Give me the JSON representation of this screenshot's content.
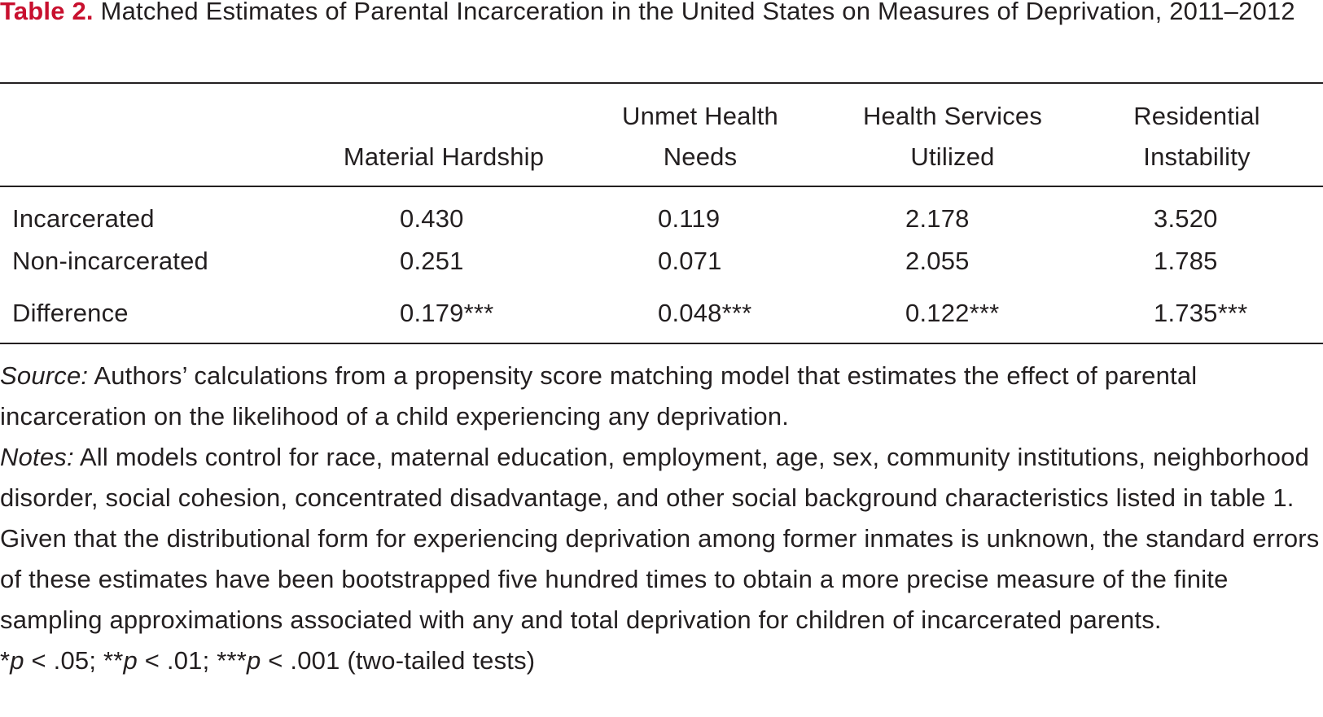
{
  "caption": {
    "label": "Table 2.",
    "title": " Matched Estimates of Parental Incarceration in the United States on Measures of Deprivation, 2011–2012"
  },
  "table": {
    "columns": [
      {
        "line1": "",
        "line2": "Material Hardship"
      },
      {
        "line1": "Unmet Health",
        "line2": "Needs"
      },
      {
        "line1": "Health Services",
        "line2": "Utilized"
      },
      {
        "line1": "Residential",
        "line2": "Instability"
      }
    ],
    "rows": [
      {
        "label": "Incarcerated",
        "values": [
          "0.430",
          "0.119",
          "2.178",
          "3.520"
        ]
      },
      {
        "label": "Non-incarcerated",
        "values": [
          "0.251",
          "0.071",
          "2.055",
          "1.785"
        ]
      },
      {
        "label": "Difference",
        "values": [
          "0.179***",
          "0.048***",
          "0.122***",
          "1.735***"
        ]
      }
    ]
  },
  "notes": {
    "source_label": "Source:",
    "source_text": " Authors’ calculations from a propensity score matching model that estimates the effect of parental incarceration on the likelihood of a child experiencing any deprivation.",
    "notes_label": "Notes:",
    "notes_text": " All models control for race, maternal education, employment, age, sex, community institutions, neighborhood disorder, social cohesion, concentrated disadvantage, and other social background characteristics listed in table 1. Given that the distributional form for experiencing deprivation  among former inmates is unknown, the standard errors of these estimates have been bootstrapped five hundred times to obtain a more precise measure of the finite sampling approximations associated with any and total deprivation for children of incarcerated parents.",
    "sig": {
      "s1": "*",
      "p1": "p",
      "t1": " < .05; **",
      "p2": "p",
      "t2": " < .01; ***",
      "p3": "p",
      "t3": " < .001 (two-tailed tests)"
    }
  }
}
